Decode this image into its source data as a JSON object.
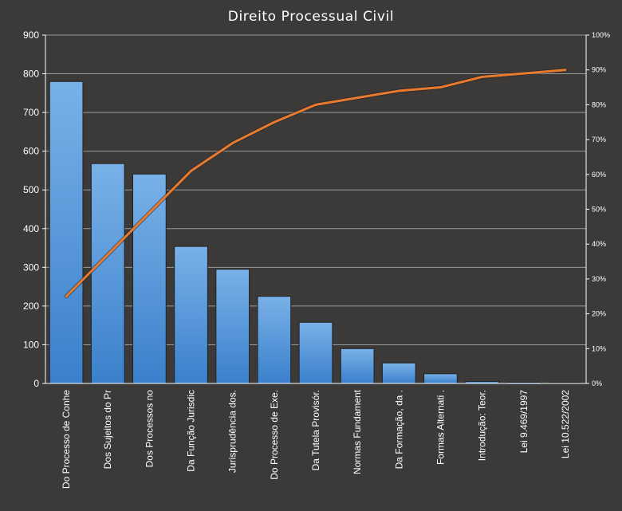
{
  "chart_data": {
    "type": "bar",
    "title": "Direito Processual Civil",
    "categories": [
      "Do Processo de Conhe",
      "Dos Sujeitos do Pr",
      "Dos Processos no",
      "Da Função Jurisdic",
      "Jurisprudência dos.",
      "Do Processo de Exe.",
      "Da Tutela Provisór.",
      "Normas Fundament",
      "Da Formação, da .",
      "Formas Alternati .",
      "Introdução: Teor.",
      "Lei 9.469/1997",
      "Lei 10.522/2002"
    ],
    "series": [
      {
        "type": "bar",
        "values": [
          780,
          568,
          541,
          354,
          295,
          225,
          158,
          90,
          53,
          25,
          5,
          3,
          2
        ]
      },
      {
        "type": "line",
        "axis": "right",
        "values": [
          25,
          37,
          49,
          61,
          69,
          75,
          80,
          82,
          84,
          85,
          88,
          89,
          90
        ]
      }
    ],
    "y_left": {
      "min": 0,
      "max": 900,
      "ticks": [
        "0",
        "100",
        "200",
        "300",
        "400",
        "500",
        "600",
        "700",
        "800",
        "900"
      ]
    },
    "y_right": {
      "min": 0,
      "max": 100,
      "ticks": [
        "0%",
        "10%",
        "20%",
        "30%",
        "40%",
        "50%",
        "60%",
        "70%",
        "80%",
        "90%",
        "100%"
      ]
    },
    "grid": true,
    "legend": "none",
    "colors": {
      "background": "#3b3a38",
      "bar_top": "#79b1e8",
      "bar_bottom": "#3a80cb",
      "bar_stroke": "#222222",
      "line": "#e87a30",
      "grid": "#9a9a9a",
      "axis": "#ffffff",
      "text": "#ffffff"
    }
  }
}
